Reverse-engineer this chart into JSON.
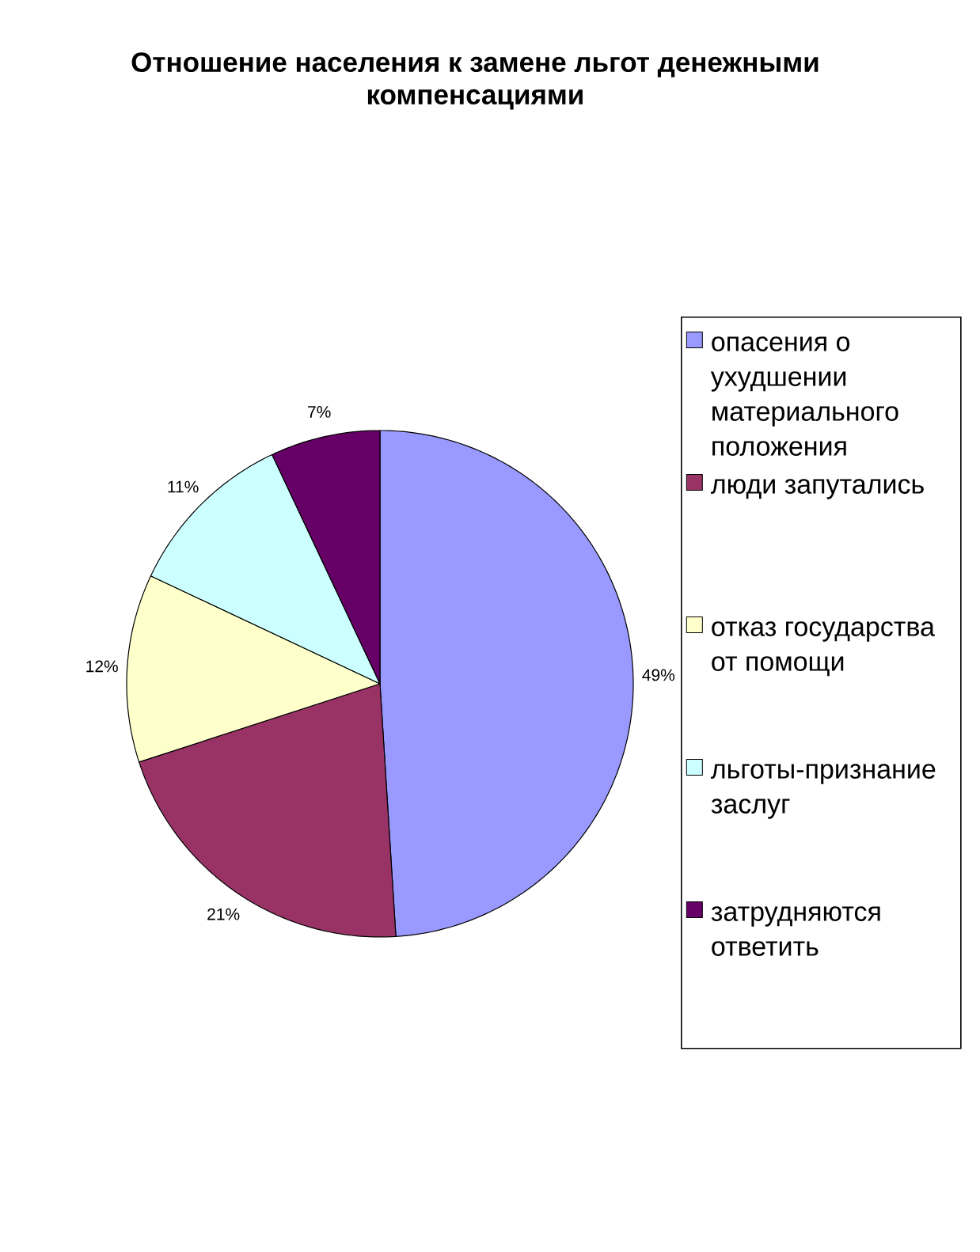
{
  "chart_data": {
    "type": "pie",
    "title": "Отношение населения к замене льгот денежными компенсациями",
    "categories": [
      "опасения о ухудшении материального положения",
      "люди запутались",
      "отказ государства от помощи",
      "льготы-признание заслуг",
      "затрудняются ответить"
    ],
    "values": [
      49,
      21,
      12,
      11,
      7
    ],
    "colors": [
      "#9999ff",
      "#993366",
      "#ffffcc",
      "#ccffff",
      "#660066"
    ],
    "value_labels": [
      "49%",
      "21%",
      "12%",
      "11%",
      "7%"
    ],
    "legend": "right"
  }
}
